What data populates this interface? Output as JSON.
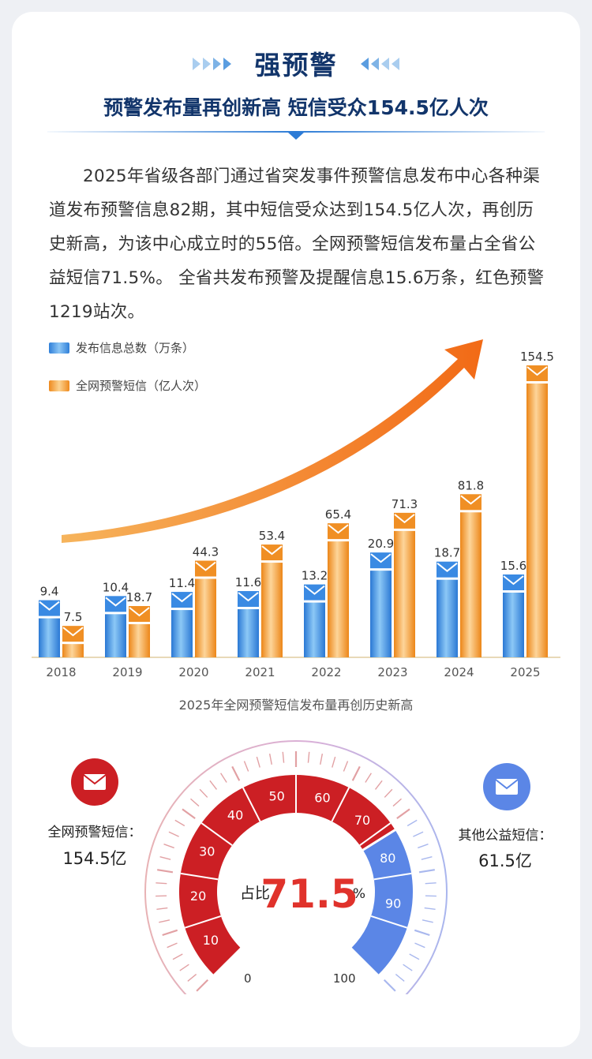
{
  "header": {
    "title": "强预警",
    "subtitle": "预警发布量再创新高  短信受众154.5亿人次"
  },
  "paragraph": "2025年省级各部门通过省突发事件预警信息发布中心各种渠道发布预警信息82期，其中短信受众达到154.5亿人次，再创历史新高，为该中心成立时的55倍。全网预警短信发布量占全省公益短信71.5%。 全省共发布预警及提醒信息15.6万条，红色预警1219站次。",
  "colors": {
    "blue": "#3f8fe6",
    "orange": "#f39a2c",
    "red": "#cc1f24",
    "gauge_blue": "#5b86e6",
    "navy": "#12356b"
  },
  "chart_data": [
    {
      "type": "bar",
      "categories": [
        "2018",
        "2019",
        "2020",
        "2021",
        "2022",
        "2023",
        "2024",
        "2025"
      ],
      "series": [
        {
          "name": "发布信息总数（万条）",
          "values": [
            9.4,
            10.4,
            11.4,
            11.6,
            13.2,
            20.9,
            18.7,
            15.6
          ],
          "labels": [
            "9.4",
            "10.4",
            "11.4",
            "11.6",
            "13.2",
            "20.9",
            "18.7",
            "15.6"
          ]
        },
        {
          "name": "全网预警短信（亿人次）",
          "values": [
            7.5,
            18.7,
            44.3,
            53.4,
            65.4,
            71.3,
            81.8,
            154.5
          ],
          "labels": [
            "7.5",
            "18.7",
            "44.3",
            "53.4",
            "65.4",
            "71.3",
            "81.8",
            "154.5"
          ]
        }
      ],
      "title": "2025年全网预警短信发布量再创历史新高",
      "legend": "top-left",
      "icon": "envelope-icon"
    },
    {
      "type": "gauge",
      "value": 71.5,
      "value_label": "71.5",
      "prefix": "占比",
      "unit": "%",
      "range": [
        0,
        100
      ],
      "tick_labels": [
        "0",
        "10",
        "20",
        "30",
        "40",
        "50",
        "60",
        "70",
        "80",
        "90",
        "100"
      ],
      "left": {
        "label": "全网预警短信：",
        "value": "154.5亿",
        "icon": "envelope-icon"
      },
      "right": {
        "label": "其他公益短信：",
        "value": "61.5亿",
        "icon": "envelope-icon"
      }
    }
  ]
}
